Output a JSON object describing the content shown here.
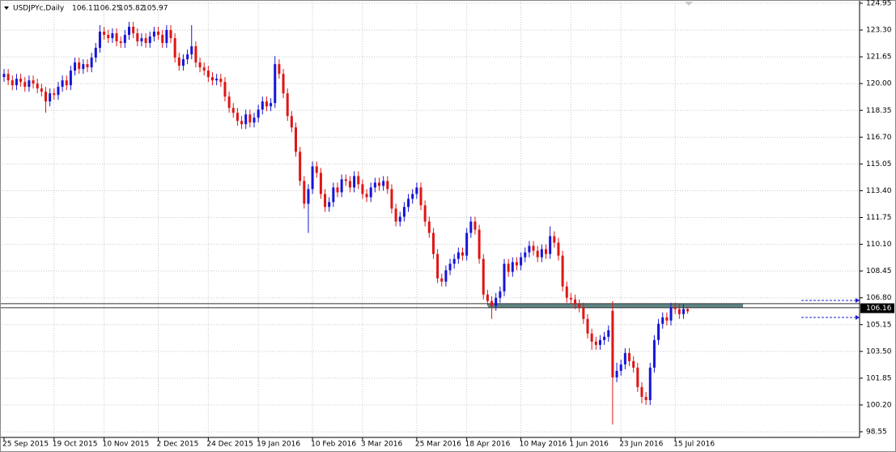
{
  "chart_data": {
    "type": "candlestick",
    "title": "USDJPYc,Daily",
    "categories": [
      "25 Sep 2015",
      null,
      null,
      null,
      null,
      null,
      null,
      null,
      null,
      null,
      null,
      null,
      "19 Oct 2015",
      null,
      null,
      null,
      null,
      null,
      null,
      null,
      null,
      null,
      null,
      null,
      "10 Nov 2015",
      null,
      null,
      null,
      null,
      null,
      null,
      null,
      null,
      null,
      null,
      null,
      null,
      "2 Dec 2015",
      null,
      null,
      null,
      null,
      null,
      null,
      null,
      null,
      null,
      null,
      null,
      "24 Dec 2015",
      null,
      null,
      null,
      null,
      null,
      null,
      null,
      null,
      null,
      null,
      null,
      "19 Jan 2016",
      null,
      null,
      null,
      null,
      null,
      null,
      null,
      null,
      null,
      null,
      null,
      null,
      "10 Feb 2016",
      null,
      null,
      null,
      null,
      null,
      null,
      null,
      null,
      null,
      null,
      null,
      "3 Mar 2016",
      null,
      null,
      null,
      null,
      null,
      null,
      null,
      null,
      null,
      null,
      null,
      null,
      "25 Mar 2016",
      null,
      null,
      null,
      null,
      null,
      null,
      null,
      null,
      null,
      null,
      null,
      "18 Apr 2016",
      null,
      null,
      null,
      null,
      null,
      null,
      null,
      null,
      null,
      null,
      null,
      null,
      "10 May 2016",
      null,
      null,
      null,
      null,
      null,
      null,
      null,
      null,
      null,
      null,
      null,
      "1 Jun 2016",
      null,
      null,
      null,
      null,
      null,
      null,
      null,
      null,
      null,
      null,
      null,
      "23 Jun 2016",
      null,
      null,
      null,
      null,
      null,
      null,
      null,
      null,
      null,
      null,
      null,
      null,
      "15 Jul 2016",
      null,
      null,
      null
    ],
    "open": [
      120.4,
      120.6,
      120.2,
      119.9,
      120.3,
      120.1,
      119.8,
      120.2,
      120.0,
      119.7,
      119.5,
      118.9,
      119.4,
      119.3,
      119.8,
      120.2,
      119.9,
      120.8,
      121.3,
      120.9,
      121.2,
      121.0,
      121.6,
      122.2,
      123.2,
      123.0,
      122.8,
      123.1,
      122.6,
      122.5,
      123.0,
      123.5,
      123.1,
      122.6,
      122.8,
      122.5,
      122.9,
      123.2,
      123.0,
      122.5,
      123.3,
      122.8,
      121.6,
      121.1,
      121.5,
      121.8,
      122.3,
      121.3,
      121.0,
      120.8,
      120.4,
      120.2,
      120.3,
      120.1,
      119.2,
      118.5,
      118.2,
      117.7,
      117.5,
      118.1,
      117.6,
      117.9,
      118.4,
      118.9,
      118.6,
      118.8,
      121.2,
      120.6,
      119.4,
      118.0,
      117.3,
      115.8,
      114.0,
      112.6,
      113.5,
      114.9,
      114.5,
      113.2,
      112.4,
      112.7,
      113.6,
      113.3,
      114.1,
      114.0,
      113.6,
      114.3,
      113.8,
      113.2,
      113.0,
      113.6,
      113.9,
      113.7,
      114.0,
      113.5,
      112.3,
      111.5,
      111.8,
      112.4,
      112.9,
      113.2,
      113.6,
      112.5,
      111.5,
      110.8,
      109.5,
      108.0,
      107.8,
      108.5,
      108.9,
      109.2,
      109.6,
      109.4,
      110.8,
      111.5,
      111.0,
      109.2,
      107.0,
      106.6,
      106.3,
      106.8,
      107.2,
      108.9,
      108.4,
      109.0,
      108.8,
      109.3,
      109.6,
      110.0,
      109.7,
      109.3,
      109.8,
      109.5,
      110.6,
      110.2,
      109.4,
      107.5,
      106.8,
      106.7,
      106.4,
      106.2,
      105.5,
      104.6,
      104.1,
      103.9,
      104.2,
      104.4,
      106.0,
      101.9,
      102.3,
      102.7,
      103.4,
      102.9,
      102.5,
      101.3,
      100.7,
      100.5,
      102.5,
      104.2,
      105.2,
      105.6,
      105.4,
      106.2,
      106.1,
      105.8,
      106.11
    ],
    "high": [
      120.9,
      120.9,
      120.5,
      120.6,
      120.6,
      120.4,
      120.5,
      120.5,
      120.3,
      120.0,
      119.8,
      119.7,
      119.7,
      120.1,
      120.5,
      120.5,
      121.1,
      121.6,
      121.6,
      121.5,
      121.5,
      121.9,
      122.5,
      123.6,
      123.5,
      123.3,
      123.4,
      123.4,
      122.9,
      123.3,
      123.8,
      123.8,
      123.4,
      123.1,
      123.1,
      123.2,
      123.5,
      123.5,
      123.3,
      123.6,
      123.6,
      123.1,
      121.9,
      121.8,
      122.1,
      123.6,
      122.6,
      121.6,
      121.3,
      121.1,
      120.7,
      120.6,
      120.6,
      120.4,
      119.5,
      118.8,
      118.5,
      118.0,
      118.4,
      118.4,
      118.2,
      118.7,
      119.2,
      119.2,
      119.1,
      121.7,
      121.5,
      120.9,
      119.7,
      118.3,
      117.6,
      116.1,
      114.3,
      113.8,
      115.2,
      115.2,
      114.8,
      113.5,
      113.0,
      113.9,
      113.9,
      114.4,
      114.4,
      114.3,
      114.6,
      114.6,
      114.1,
      113.5,
      113.9,
      114.2,
      114.2,
      114.3,
      114.3,
      113.8,
      112.6,
      112.1,
      112.7,
      113.2,
      113.5,
      113.9,
      113.9,
      112.8,
      111.8,
      111.1,
      109.8,
      108.3,
      108.8,
      109.2,
      109.5,
      109.9,
      109.9,
      111.1,
      111.8,
      111.8,
      111.3,
      109.5,
      107.3,
      106.9,
      107.1,
      107.5,
      109.2,
      109.2,
      109.3,
      109.3,
      109.6,
      109.9,
      110.3,
      110.3,
      110.0,
      110.1,
      110.1,
      111.2,
      110.9,
      110.5,
      109.7,
      107.8,
      107.1,
      107.0,
      106.7,
      106.5,
      105.8,
      104.9,
      104.4,
      104.5,
      104.7,
      105.1,
      106.6,
      102.8,
      103.0,
      103.7,
      103.7,
      103.2,
      102.8,
      101.6,
      101.0,
      102.8,
      104.5,
      105.5,
      105.9,
      105.9,
      106.5,
      106.5,
      106.4,
      106.4,
      106.25
    ],
    "low": [
      120.1,
      119.9,
      119.6,
      119.6,
      119.8,
      119.5,
      119.5,
      119.7,
      119.4,
      119.2,
      118.2,
      118.6,
      119.0,
      119.0,
      119.5,
      119.6,
      119.6,
      120.5,
      120.6,
      120.6,
      120.7,
      120.7,
      121.3,
      121.9,
      122.7,
      122.5,
      122.5,
      122.3,
      122.2,
      122.2,
      122.7,
      122.8,
      122.3,
      122.3,
      122.2,
      122.2,
      122.6,
      122.7,
      122.2,
      122.2,
      122.5,
      121.3,
      120.8,
      120.8,
      121.2,
      121.5,
      121.0,
      120.7,
      120.5,
      120.1,
      119.9,
      119.9,
      119.8,
      118.9,
      118.2,
      117.9,
      117.4,
      117.2,
      117.2,
      117.3,
      117.3,
      117.6,
      118.1,
      118.3,
      118.3,
      118.5,
      120.3,
      119.1,
      117.7,
      117.0,
      115.5,
      113.7,
      112.3,
      110.8,
      113.2,
      114.2,
      112.9,
      112.1,
      112.1,
      112.4,
      113.0,
      113.0,
      113.7,
      113.3,
      113.3,
      113.5,
      112.9,
      112.7,
      112.7,
      113.3,
      113.4,
      113.4,
      113.2,
      112.0,
      111.2,
      111.2,
      111.5,
      112.1,
      112.6,
      112.9,
      112.2,
      111.2,
      110.5,
      109.2,
      107.7,
      107.5,
      107.5,
      108.2,
      108.6,
      108.9,
      109.1,
      109.1,
      110.5,
      110.7,
      108.9,
      106.7,
      106.3,
      105.5,
      106.0,
      106.5,
      106.9,
      108.1,
      108.1,
      108.5,
      108.5,
      109.0,
      109.3,
      109.4,
      109.0,
      109.0,
      109.2,
      109.2,
      109.9,
      109.1,
      107.2,
      106.5,
      106.4,
      106.1,
      105.9,
      105.2,
      104.3,
      103.6,
      103.6,
      103.6,
      103.9,
      104.1,
      99.0,
      101.6,
      102.0,
      102.4,
      102.6,
      102.2,
      101.0,
      100.3,
      100.2,
      100.2,
      102.2,
      103.9,
      104.9,
      105.1,
      105.1,
      105.8,
      105.5,
      105.5,
      105.82
    ],
    "close": [
      120.6,
      120.2,
      119.9,
      120.3,
      120.1,
      119.8,
      120.2,
      120.0,
      119.7,
      119.5,
      118.9,
      119.4,
      119.3,
      119.8,
      120.2,
      119.9,
      120.8,
      121.3,
      120.9,
      121.2,
      121.0,
      121.6,
      122.2,
      123.2,
      123.0,
      122.8,
      123.1,
      122.6,
      122.5,
      123.0,
      123.5,
      123.1,
      122.6,
      122.8,
      122.5,
      122.9,
      123.2,
      123.0,
      122.5,
      123.3,
      122.8,
      121.6,
      121.1,
      121.5,
      121.8,
      122.3,
      121.3,
      121.0,
      120.8,
      120.4,
      120.2,
      120.3,
      120.1,
      119.2,
      118.5,
      118.2,
      117.7,
      117.5,
      118.1,
      117.6,
      117.9,
      118.4,
      118.9,
      118.6,
      118.8,
      121.2,
      120.6,
      119.4,
      118.0,
      117.3,
      115.8,
      114.0,
      112.6,
      113.5,
      114.9,
      114.5,
      113.2,
      112.4,
      112.7,
      113.6,
      113.3,
      114.1,
      114.0,
      113.6,
      114.3,
      113.8,
      113.2,
      113.0,
      113.6,
      113.9,
      113.7,
      114.0,
      113.5,
      112.3,
      111.5,
      111.8,
      112.4,
      112.9,
      113.2,
      113.6,
      112.5,
      111.5,
      110.8,
      109.5,
      108.0,
      107.8,
      108.5,
      108.9,
      109.2,
      109.6,
      109.4,
      110.8,
      111.5,
      111.0,
      109.2,
      107.0,
      106.6,
      106.3,
      106.8,
      107.2,
      108.9,
      108.4,
      109.0,
      108.8,
      109.3,
      109.6,
      110.0,
      109.7,
      109.3,
      109.8,
      109.5,
      110.6,
      110.2,
      109.4,
      107.5,
      106.8,
      106.7,
      106.4,
      106.2,
      105.5,
      104.6,
      104.1,
      103.9,
      104.2,
      104.4,
      104.8,
      101.9,
      102.3,
      102.7,
      103.4,
      102.9,
      102.5,
      101.3,
      100.7,
      100.5,
      102.5,
      104.2,
      105.2,
      105.6,
      105.4,
      106.2,
      106.1,
      105.8,
      106.11,
      105.97
    ],
    "up_color": "#1515d8",
    "down_color": "#e01515",
    "ylim": [
      98.55,
      124.95
    ],
    "yticks": [
      98.55,
      {
        "value": 100.2,
        "label": "100.20"
      },
      101.85,
      {
        "value": 103.5,
        "label": "103.50"
      },
      105.15,
      {
        "value": 106.8,
        "label": "106.80"
      },
      108.45,
      {
        "value": 110.1,
        "label": "110.10"
      },
      111.75,
      {
        "value": 113.4,
        "label": "113.40"
      },
      115.05,
      {
        "value": 116.7,
        "label": "116.70"
      },
      118.35,
      {
        "value": 120,
        "label": "120.00"
      },
      121.65,
      {
        "value": 123.3,
        "label": "123.30"
      },
      124.95
    ],
    "grid": true,
    "horizontal_lines": [
      106.44,
      106.19
    ],
    "zone": {
      "low": 106.19,
      "high": 106.44,
      "color": "#5f8585"
    },
    "arrow_levels": [
      106.64,
      105.59
    ],
    "current_price": 106.16
  }
}
